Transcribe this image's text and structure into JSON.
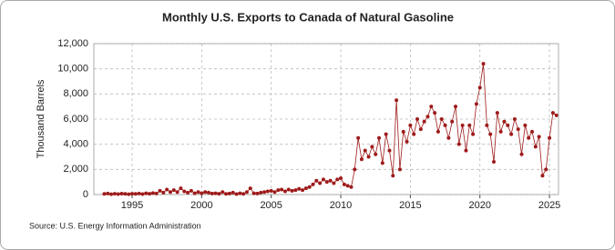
{
  "chart_data": {
    "type": "line",
    "title": "Monthly U.S. Exports to Canada of Natural Gasoline",
    "y_label": "Thousand Barrels",
    "source": "Source: U.S. Energy Information Administration",
    "grid": true,
    "markers": true,
    "xlim": [
      1992.25,
      2025.65
    ],
    "xticks": [
      1995,
      2000,
      2005,
      2010,
      2015,
      2020,
      2025
    ],
    "ylim": [
      0,
      12000
    ],
    "yticks": [
      0,
      {
        "value": 2000,
        "label": "2,000"
      },
      {
        "value": 4000,
        "label": "4,000"
      },
      {
        "value": 6000,
        "label": "6,000"
      },
      {
        "value": 8000,
        "label": "8,000"
      },
      {
        "value": 10000,
        "label": "10,000"
      },
      {
        "value": 12000,
        "label": "12,000"
      }
    ],
    "x": [
      1993,
      1993.25,
      1993.5,
      1993.75,
      1994,
      1994.25,
      1994.5,
      1994.75,
      1995,
      1995.25,
      1995.5,
      1995.75,
      1996,
      1996.25,
      1996.5,
      1996.75,
      1997,
      1997.25,
      1997.5,
      1997.75,
      1998,
      1998.25,
      1998.5,
      1998.75,
      1999,
      1999.25,
      1999.5,
      1999.75,
      2000,
      2000.25,
      2000.5,
      2000.75,
      2001,
      2001.25,
      2001.5,
      2001.75,
      2002,
      2002.25,
      2002.5,
      2002.75,
      2003,
      2003.25,
      2003.5,
      2003.75,
      2004,
      2004.25,
      2004.5,
      2004.75,
      2005,
      2005.25,
      2005.5,
      2005.75,
      2006,
      2006.25,
      2006.5,
      2006.75,
      2007,
      2007.25,
      2007.5,
      2007.75,
      2008,
      2008.25,
      2008.5,
      2008.75,
      2009,
      2009.25,
      2009.5,
      2009.75,
      2010,
      2010.25,
      2010.5,
      2010.75,
      2011,
      2011.25,
      2011.5,
      2011.75,
      2012,
      2012.25,
      2012.5,
      2012.75,
      2013,
      2013.25,
      2013.5,
      2013.75,
      2014,
      2014.25,
      2014.5,
      2014.75,
      2015,
      2015.25,
      2015.5,
      2015.75,
      2016,
      2016.25,
      2016.5,
      2016.75,
      2017,
      2017.25,
      2017.5,
      2017.75,
      2018,
      2018.25,
      2018.5,
      2018.75,
      2019,
      2019.25,
      2019.5,
      2019.75,
      2020,
      2020.25,
      2020.5,
      2020.75,
      2021,
      2021.25,
      2021.5,
      2021.75,
      2022,
      2022.25,
      2022.5,
      2022.75,
      2023,
      2023.25,
      2023.5,
      2023.75,
      2024,
      2024.25,
      2024.5,
      2024.75,
      2025,
      2025.25,
      2025.5
    ],
    "series": [
      {
        "name": "Exports",
        "color": "#9e1a1a",
        "values": [
          50,
          80,
          30,
          60,
          40,
          70,
          50,
          30,
          60,
          50,
          80,
          40,
          100,
          60,
          120,
          80,
          300,
          150,
          400,
          200,
          350,
          200,
          500,
          250,
          150,
          300,
          100,
          200,
          100,
          200,
          150,
          80,
          100,
          60,
          200,
          50,
          80,
          150,
          40,
          100,
          50,
          200,
          500,
          100,
          80,
          150,
          200,
          250,
          300,
          200,
          350,
          400,
          250,
          400,
          300,
          350,
          450,
          350,
          500,
          600,
          800,
          1100,
          900,
          1200,
          1000,
          1100,
          900,
          1200,
          1300,
          800,
          700,
          600,
          2000,
          4500,
          2800,
          3500,
          3000,
          3800,
          3200,
          4500,
          2500,
          4800,
          3500,
          1500,
          7500,
          2000,
          5000,
          4200,
          5500,
          4800,
          6000,
          5200,
          5800,
          6200,
          7000,
          6500,
          5000,
          6000,
          5500,
          4500,
          5800,
          7000,
          4000,
          5500,
          3500,
          5500,
          4800,
          7200,
          8500,
          10400,
          5500,
          4800,
          2600,
          6500,
          5000,
          5800,
          5500,
          4800,
          6000,
          5200,
          3200,
          5500,
          4500,
          5000,
          3800,
          4600,
          1500,
          2000,
          4500,
          6500,
          6300
        ]
      }
    ]
  }
}
